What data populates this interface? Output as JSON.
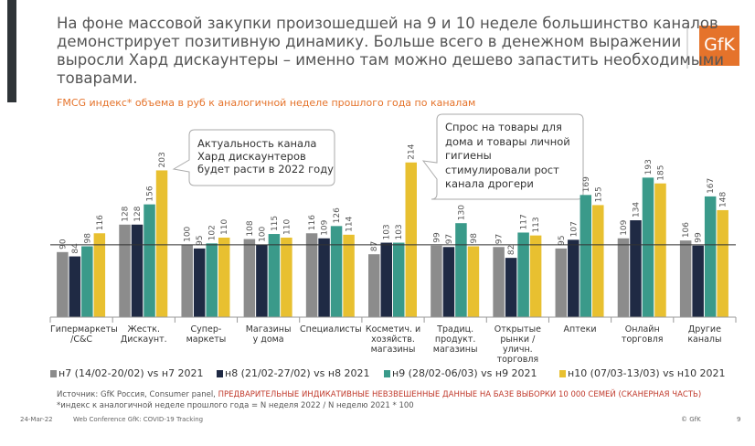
{
  "header": {
    "title": "На фоне массовой закупки произошедшей на  9 и 10 неделе большинство каналов\nдемонстрирует позитивную динамику. Больше всего в денежном выражении\nвыросли Хард дискаунтеры – именно там можно дешево запастить необходимыми\nтоварами.",
    "logo": "GfK"
  },
  "chart_data": {
    "type": "bar",
    "title": "FMCG индекс* объема в руб к аналогичной неделе прошлого года по каналам",
    "categories": [
      "Гипермаркеты\n/C&C",
      "Жестк.\nДискаунт.",
      "Супер-\nмаркеты",
      "Магазины\nу дома",
      "Специалисты",
      "Косметич. и\nхозяйств.\nмагазины",
      "Традиц.\nпродукт.\nмагазины",
      "Открытые\nрынки /\nуличн.\nторговля",
      "Аптеки",
      "Онлайн\nторговля",
      "Другие\nканалы"
    ],
    "series": [
      {
        "name": "н7 (14/02-20/02) vs н7 2021",
        "color": "#8c8c8c",
        "values": [
          90,
          128,
          100,
          108,
          116,
          87,
          99,
          97,
          95,
          109,
          106
        ]
      },
      {
        "name": "н8 (21/02-27/02) vs н8 2021",
        "color": "#1f2a44",
        "values": [
          84,
          128,
          95,
          100,
          109,
          103,
          97,
          82,
          107,
          134,
          99
        ]
      },
      {
        "name": "н9 (28/02-06/03) vs н9 2021",
        "color": "#3a9a8a",
        "values": [
          98,
          156,
          102,
          115,
          126,
          103,
          130,
          117,
          169,
          193,
          167
        ]
      },
      {
        "name": "н10 (07/03-13/03) vs н10 2021",
        "color": "#e8c030",
        "values": [
          116,
          203,
          110,
          110,
          114,
          214,
          98,
          113,
          155,
          185,
          148
        ]
      }
    ],
    "ylim": [
      0,
      220
    ],
    "reference_line": 100,
    "annotations": [
      "Актуальность канала\nХард дискаунтеров\nбудет расти в 2022 году",
      "Спрос на товары для\nдома и товары личной\nгигиены\nстимулировали рост\nканала дрогери"
    ]
  },
  "footnotes": {
    "source": "Источник: GfK Россия, Consumer panel, ",
    "warning": "ПРЕДВАРИТЕЛЬНЫЕ ИНДИКАТИВНЫЕ НЕВЗВЕШЕННЫЕ ДАННЫЕ НА БАЗЕ ВЫБОРКИ 10 000 СЕМЕЙ (СКАНЕРНАЯ ЧАСТЬ)",
    "index_note": "*индекс к аналогичной неделе прошлого года = N неделя 2022 / N неделю 2021 * 100"
  },
  "footer": {
    "date": "24-Mar-22",
    "event": "Web Conference GfK: COVID-19 Tracking",
    "copyright": "© GfK",
    "page": "9"
  }
}
